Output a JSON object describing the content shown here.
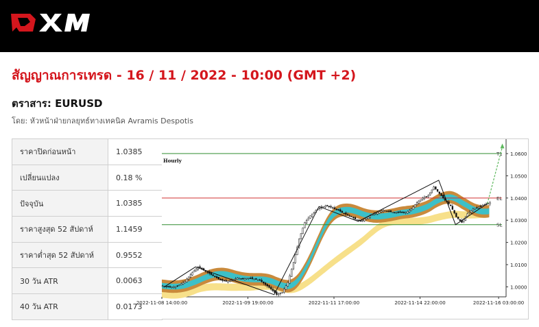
{
  "brand": {
    "name": "XM",
    "header_color": "#000000",
    "accent": "#d4161d"
  },
  "title": "สัญญาณการเทรด - 16 / 11 / 2022 - 10:00 (GMT +2)",
  "instrument": "ตราสาร: EURUSD",
  "author": "โดย: หัวหน้าฝ่ายกลยุทธ์ทางเทคนิค Avramis Despotis",
  "stats": [
    {
      "label": "ราคาปิดก่อนหน้า",
      "value": "1.0385"
    },
    {
      "label": "เปลี่ยนแปลง",
      "value": "0.18 %"
    },
    {
      "label": "ปัจจุบัน",
      "value": "1.0385"
    },
    {
      "label": "ราคาสูงสุด 52 สัปดาห์",
      "value": "1.1459"
    },
    {
      "label": "ราคาต่ำสุด 52 สัปดาห์",
      "value": "0.9552"
    },
    {
      "label": "30 วัน ATR",
      "value": "0.0063"
    },
    {
      "label": "40 วัน ATR",
      "value": "0.0173"
    }
  ],
  "chart_data": {
    "type": "candlestick",
    "timeframe_label": "Hourly",
    "x_ticks": [
      "2022-11-08 14:00:00",
      "2022-11-09 19:00:00",
      "2022-11-11 17:00:00",
      "2022-11-14 22:00:00",
      "2022-11-16 03:00:00"
    ],
    "y_ticks": [
      "1.0600",
      "1.0500",
      "1.0400",
      "1.0300",
      "1.0200",
      "1.0100",
      "1.0000"
    ],
    "ylim": [
      0.9955,
      1.0665
    ],
    "levels": [
      {
        "name": "T1",
        "value": 1.06,
        "color": "#2e8b2e"
      },
      {
        "name": "EL",
        "value": 1.04,
        "color": "#d03030"
      },
      {
        "name": "SL",
        "value": 1.028,
        "color": "#2e8b2e"
      }
    ],
    "close_path": [
      [
        0,
        1.0005
      ],
      [
        4,
        0.9998
      ],
      [
        8,
        1.0003
      ],
      [
        12,
        1.0025
      ],
      [
        16,
        1.0065
      ],
      [
        19,
        1.009
      ],
      [
        22,
        1.0075
      ],
      [
        25,
        1.006
      ],
      [
        28,
        1.0045
      ],
      [
        31,
        1.003
      ],
      [
        34,
        1.0025
      ],
      [
        37,
        1.003
      ],
      [
        40,
        1.004
      ],
      [
        43,
        1.0035
      ],
      [
        46,
        1.004
      ],
      [
        49,
        1.0035
      ],
      [
        52,
        1.003
      ],
      [
        55,
        1.001
      ],
      [
        58,
        0.999
      ],
      [
        61,
        0.9965
      ],
      [
        64,
        0.9975
      ],
      [
        67,
        1.002
      ],
      [
        70,
        1.011
      ],
      [
        73,
        1.0215
      ],
      [
        76,
        1.029
      ],
      [
        79,
        1.032
      ],
      [
        82,
        1.0345
      ],
      [
        85,
        1.036
      ],
      [
        88,
        1.0365
      ],
      [
        91,
        1.0355
      ],
      [
        94,
        1.0345
      ],
      [
        97,
        1.033
      ],
      [
        100,
        1.032
      ],
      [
        103,
        1.0305
      ],
      [
        106,
        1.0295
      ],
      [
        109,
        1.031
      ],
      [
        112,
        1.0325
      ],
      [
        115,
        1.0335
      ],
      [
        118,
        1.0345
      ],
      [
        121,
        1.034
      ],
      [
        124,
        1.0335
      ],
      [
        127,
        1.0335
      ],
      [
        130,
        1.0335
      ],
      [
        133,
        1.035
      ],
      [
        136,
        1.038
      ],
      [
        139,
        1.04
      ],
      [
        142,
        1.041
      ],
      [
        145,
        1.045
      ],
      [
        148,
        1.042
      ],
      [
        151,
        1.039
      ],
      [
        154,
        1.0365
      ],
      [
        157,
        1.0315
      ],
      [
        160,
        1.029
      ],
      [
        163,
        1.033
      ],
      [
        166,
        1.035
      ],
      [
        169,
        1.036
      ],
      [
        172,
        1.037
      ],
      [
        175,
        1.038
      ]
    ],
    "zigzag": [
      [
        1,
        0.9998
      ],
      [
        18,
        1.009
      ],
      [
        60,
        0.9965
      ],
      [
        84,
        1.0362
      ],
      [
        105,
        1.0295
      ],
      [
        148,
        1.048
      ],
      [
        157,
        1.028
      ],
      [
        174,
        1.0375
      ]
    ],
    "projection": [
      [
        174,
        1.0375
      ],
      [
        182,
        1.063
      ]
    ]
  }
}
